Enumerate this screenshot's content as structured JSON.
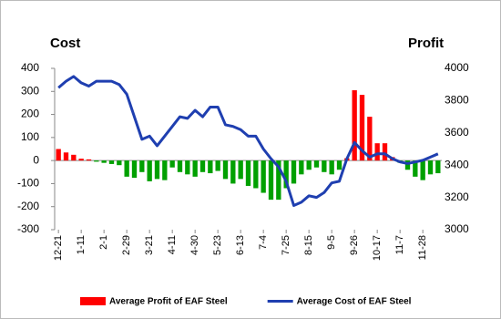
{
  "chart_data": {
    "type": "combo",
    "y_axis_title": "Cost",
    "y2_axis_title": "Profit",
    "categories": [
      "12-21",
      null,
      null,
      "1-11",
      null,
      null,
      "2-1",
      null,
      null,
      "2-29",
      null,
      null,
      "3-21",
      null,
      null,
      "4-11",
      null,
      null,
      "4-30",
      null,
      null,
      "5-23",
      null,
      null,
      "6-13",
      null,
      null,
      "7-4",
      null,
      null,
      "7-25",
      null,
      null,
      "8-15",
      null,
      null,
      "9-5",
      null,
      null,
      "9-26",
      null,
      null,
      "10-17",
      null,
      null,
      "11-7",
      null,
      null,
      "11-28",
      null,
      null
    ],
    "series": [
      {
        "name": "Average Profit of EAF Steel",
        "type": "bar",
        "color": "#ff0000",
        "negative_color": "#00a000",
        "values": [
          50,
          35,
          25,
          8,
          5,
          -5,
          -10,
          -15,
          -20,
          -70,
          -75,
          -50,
          -90,
          -80,
          -85,
          -30,
          -50,
          -60,
          -70,
          -50,
          -55,
          -45,
          -80,
          -100,
          -80,
          -110,
          -120,
          -140,
          -170,
          -170,
          -120,
          -100,
          -60,
          -40,
          -30,
          -50,
          -60,
          -40,
          10,
          305,
          285,
          190,
          75,
          75,
          15,
          -10,
          -40,
          -70,
          -85,
          -60,
          -55
        ]
      },
      {
        "name": "Average Cost of EAF Steel",
        "type": "line",
        "axis": "y2",
        "color": "#1f3fb0",
        "values": [
          3880,
          3920,
          3950,
          3910,
          3890,
          3920,
          3920,
          3920,
          3900,
          3840,
          3700,
          3560,
          3580,
          3520,
          3580,
          3640,
          3700,
          3690,
          3740,
          3700,
          3760,
          3760,
          3650,
          3640,
          3620,
          3580,
          3580,
          3500,
          3440,
          3390,
          3300,
          3150,
          3170,
          3210,
          3200,
          3230,
          3290,
          3300,
          3440,
          3540,
          3490,
          3450,
          3470,
          3470,
          3440,
          3420,
          3410,
          3420,
          3430,
          3450,
          3470
        ]
      }
    ],
    "ylim": [
      -300,
      400
    ],
    "yticks": [
      -300,
      -200,
      -100,
      0,
      100,
      200,
      300,
      400
    ],
    "y2lim": [
      3000,
      4000
    ],
    "y2ticks": [
      3000,
      3200,
      3400,
      3600,
      3800,
      4000
    ],
    "grid": false,
    "legend": "bottom"
  }
}
